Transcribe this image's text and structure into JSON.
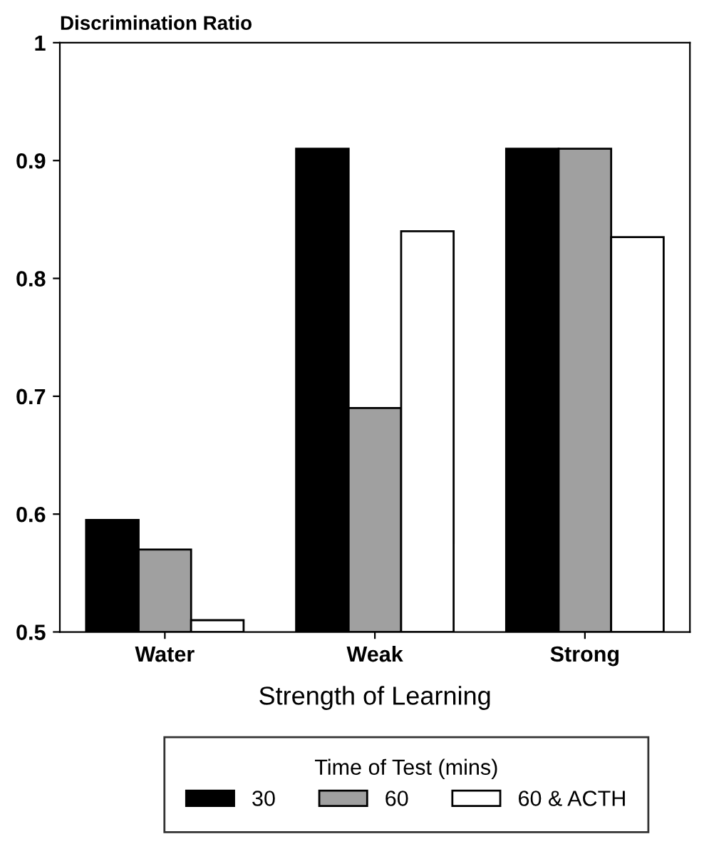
{
  "chart_data": {
    "type": "bar",
    "ylabel": "Discrimination Ratio",
    "xlabel": "Strength of Learning",
    "legend_title": "Time of Test (mins)",
    "categories": [
      "Water",
      "Weak",
      "Strong"
    ],
    "series": [
      {
        "name": "30",
        "color": "#000000",
        "values": [
          0.595,
          0.91,
          0.91
        ]
      },
      {
        "name": "60",
        "color": "#a0a0a0",
        "values": [
          0.57,
          0.69,
          0.91
        ]
      },
      {
        "name": "60 & ACTH",
        "color": "#ffffff",
        "values": [
          0.51,
          0.84,
          0.835
        ]
      }
    ],
    "ylim": [
      0.5,
      1
    ],
    "yticks": [
      0.5,
      0.6,
      0.7,
      0.8,
      0.9,
      1
    ],
    "grid": false,
    "legend": "bottom"
  }
}
